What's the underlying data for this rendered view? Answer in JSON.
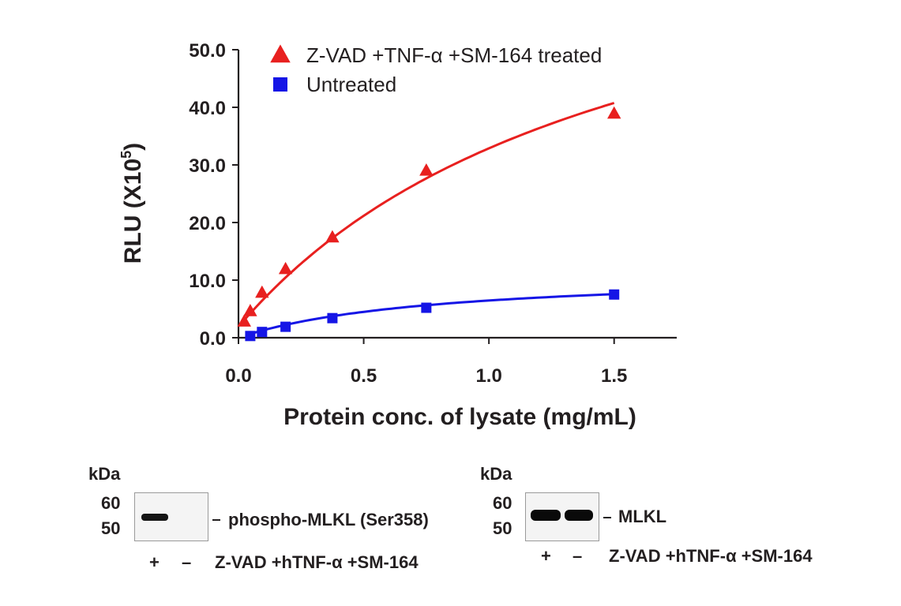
{
  "chart_data": {
    "type": "scatter",
    "xlabel": "Protein conc. of lysate (mg/mL)",
    "ylabel": "RLU (X10",
    "ylabel_superscript": "5",
    "ylabel_close": ")",
    "xlim": [
      0,
      1.75
    ],
    "ylim": [
      0,
      50
    ],
    "x_ticks": [
      "0.0",
      "0.5",
      "1.0",
      "1.5"
    ],
    "x_tick_values": [
      0,
      0.5,
      1.0,
      1.5
    ],
    "y_ticks": [
      "0.0",
      "10.0",
      "20.0",
      "30.0",
      "40.0",
      "50.0"
    ],
    "y_tick_values": [
      0,
      10,
      20,
      30,
      40,
      50
    ],
    "grid": false,
    "legend_position": "top-left",
    "series": [
      {
        "name": "Z-VAD +TNF-α +SM-164 treated",
        "marker": "triangle",
        "color": "#e8201f",
        "x": [
          0.023,
          0.047,
          0.094,
          0.188,
          0.375,
          0.75,
          1.5
        ],
        "y": [
          2.8,
          4.6,
          7.8,
          11.9,
          17.4,
          29.0,
          38.9
        ]
      },
      {
        "name": "Untreated",
        "marker": "square",
        "color": "#1515e6",
        "x": [
          0.047,
          0.094,
          0.188,
          0.375,
          0.75,
          1.5
        ],
        "y": [
          0.3,
          1.0,
          1.9,
          3.4,
          5.2,
          7.5
        ]
      }
    ]
  },
  "blots": [
    {
      "unit": "kDa",
      "markers": [
        "60",
        "50"
      ],
      "target": "phospho-MLKL (Ser358)",
      "lanes": [
        "+",
        "–"
      ],
      "treatment": "Z-VAD +hTNF-α +SM-164"
    },
    {
      "unit": "kDa",
      "markers": [
        "60",
        "50"
      ],
      "target": "MLKL",
      "lanes": [
        "+",
        "–"
      ],
      "treatment": "Z-VAD +hTNF-α +SM-164"
    }
  ]
}
